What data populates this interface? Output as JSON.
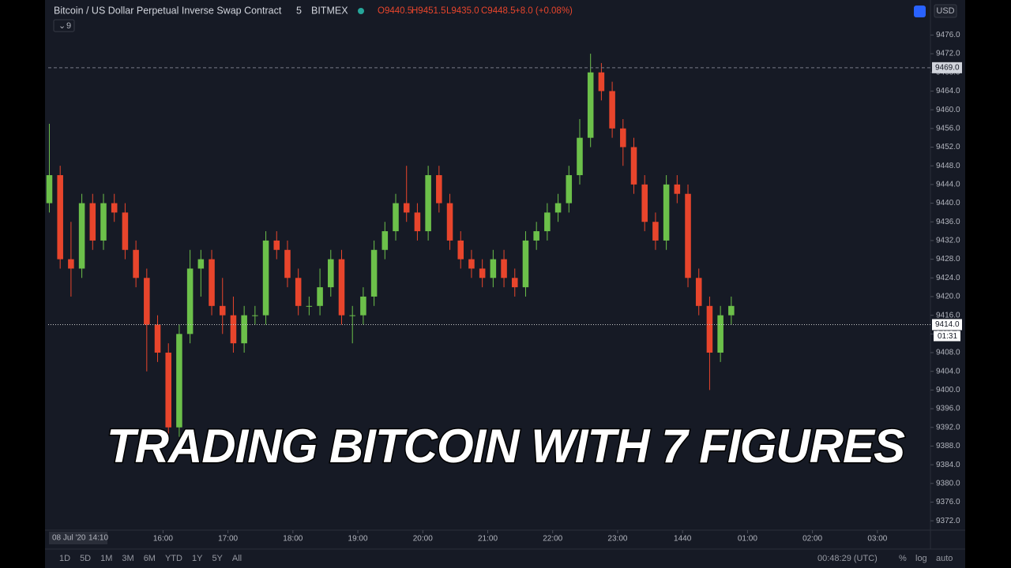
{
  "header": {
    "symbol": "Bitcoin / US Dollar Perpetual Inverse Swap Contract",
    "interval": "5",
    "exchange": "BITMEX",
    "ohlc_legend": [
      "O9440.5",
      "H9451.5",
      "L9435.0",
      "C9448.5",
      "+8.0 (+0.08%)"
    ],
    "indicator_count": "9",
    "currency": "USD"
  },
  "overlay_title": "TRADING BITCOIN WITH 7 FIGURES",
  "chart_data": {
    "type": "candlestick",
    "x": [
      855,
      865,
      875,
      885,
      895,
      905,
      915,
      925,
      935,
      945,
      955,
      965,
      975,
      985,
      995,
      1005,
      1015,
      1025,
      1035,
      1045,
      1055,
      1065,
      1075,
      1085,
      1095,
      1105,
      1115,
      1125,
      1135,
      1145,
      1155,
      1165,
      1175,
      1185,
      1195,
      1205,
      1215,
      1225,
      1235,
      1245,
      1255,
      1265,
      1275,
      1285,
      1295,
      1305,
      1315,
      1325,
      1335,
      1345,
      1355,
      1365,
      1375,
      1385,
      1395,
      1405,
      1415,
      1425,
      1435,
      1445,
      1455,
      1465,
      1475,
      1485
    ],
    "open": [
      9440,
      9446,
      9428,
      9426,
      9440,
      9432,
      9440,
      9438,
      9430,
      9424,
      9414,
      9408,
      9392,
      9412,
      9426,
      9428,
      9418,
      9416,
      9410,
      9416,
      9416,
      9432,
      9430,
      9424,
      9418,
      9418,
      9422,
      9428,
      9416,
      9416,
      9420,
      9430,
      9434,
      9440,
      9438,
      9434,
      9446,
      9440,
      9432,
      9428,
      9426,
      9424,
      9428,
      9424,
      9422,
      9432,
      9434,
      9438,
      9440,
      9446,
      9454,
      9468,
      9464,
      9456,
      9452,
      9444,
      9436,
      9432,
      9444,
      9442,
      9424,
      9418,
      9408,
      9416
    ],
    "high": [
      9457,
      9448,
      9436,
      9442,
      9442,
      9442,
      9442,
      9440,
      9432,
      9426,
      9416,
      9410,
      9414,
      9430,
      9430,
      9430,
      9424,
      9420,
      9418,
      9418,
      9434,
      9434,
      9432,
      9426,
      9420,
      9426,
      9430,
      9430,
      9418,
      9422,
      9432,
      9436,
      9442,
      9448,
      9440,
      9448,
      9448,
      9442,
      9434,
      9430,
      9428,
      9430,
      9430,
      9426,
      9434,
      9436,
      9440,
      9442,
      9448,
      9458,
      9472,
      9470,
      9466,
      9458,
      9454,
      9446,
      9438,
      9446,
      9446,
      9444,
      9426,
      9420,
      9418,
      9420
    ],
    "low": [
      9438,
      9426,
      9420,
      9424,
      9430,
      9430,
      9436,
      9428,
      9422,
      9404,
      9406,
      9390,
      9390,
      9410,
      9420,
      9416,
      9412,
      9408,
      9408,
      9414,
      9414,
      9428,
      9422,
      9416,
      9416,
      9416,
      9420,
      9414,
      9410,
      9414,
      9418,
      9428,
      9432,
      9436,
      9432,
      9432,
      9438,
      9430,
      9426,
      9424,
      9422,
      9422,
      9422,
      9420,
      9420,
      9430,
      9432,
      9436,
      9438,
      9444,
      9452,
      9462,
      9454,
      9448,
      9442,
      9434,
      9430,
      9430,
      9440,
      9422,
      9416,
      9400,
      9406,
      9414
    ],
    "close": [
      9446,
      9428,
      9426,
      9440,
      9432,
      9440,
      9438,
      9430,
      9424,
      9414,
      9408,
      9392,
      9412,
      9426,
      9428,
      9418,
      9416,
      9410,
      9416,
      9416,
      9432,
      9430,
      9424,
      9418,
      9418,
      9422,
      9428,
      9416,
      9416,
      9420,
      9430,
      9434,
      9440,
      9438,
      9434,
      9446,
      9440,
      9432,
      9428,
      9426,
      9424,
      9428,
      9424,
      9422,
      9432,
      9434,
      9438,
      9440,
      9446,
      9454,
      9468,
      9464,
      9456,
      9452,
      9444,
      9436,
      9432,
      9444,
      9442,
      9424,
      9418,
      9408,
      9416,
      9418
    ],
    "up_color": "#6cc04a",
    "down_color": "#e8452c",
    "xlim": [
      851,
      1669
    ],
    "ylim": [
      9370,
      9483.5
    ],
    "xticks": [
      {
        "value": 960,
        "label": "16:00"
      },
      {
        "value": 1020,
        "label": "17:00"
      },
      {
        "value": 1080,
        "label": "18:00"
      },
      {
        "value": 1140,
        "label": "19:00"
      },
      {
        "value": 1200,
        "label": "20:00"
      },
      {
        "value": 1260,
        "label": "21:00"
      },
      {
        "value": 1320,
        "label": "22:00"
      },
      {
        "value": 1380,
        "label": "23:00"
      },
      1440,
      {
        "value": 1500,
        "label": "01:00"
      },
      {
        "value": 1560,
        "label": "02:00"
      },
      {
        "value": 1620,
        "label": "03:00"
      }
    ],
    "yticks": [
      {
        "value": 9372,
        "label": "9372.0"
      },
      {
        "value": 9376,
        "label": "9376.0"
      },
      {
        "value": 9380,
        "label": "9380.0"
      },
      {
        "value": 9384,
        "label": "9384.0"
      },
      {
        "value": 9388,
        "label": "9388.0"
      },
      {
        "value": 9392,
        "label": "9392.0"
      },
      {
        "value": 9396,
        "label": "9396.0"
      },
      {
        "value": 9400,
        "label": "9400.0"
      },
      {
        "value": 9404,
        "label": "9404.0"
      },
      {
        "value": 9408,
        "label": "9408.0"
      },
      {
        "value": 9412,
        "label": "9412.0"
      },
      {
        "value": 9416,
        "label": "9416.0"
      },
      {
        "value": 9420,
        "label": "9420.0"
      },
      {
        "value": 9424,
        "label": "9424.0"
      },
      {
        "value": 9428,
        "label": "9428.0"
      },
      {
        "value": 9432,
        "label": "9432.0"
      },
      {
        "value": 9436,
        "label": "9436.0"
      },
      {
        "value": 9440,
        "label": "9440.0"
      },
      {
        "value": 9444,
        "label": "9444.0"
      },
      {
        "value": 9448,
        "label": "9448.0"
      },
      {
        "value": 9452,
        "label": "9452.0"
      },
      {
        "value": 9456,
        "label": "9456.0"
      },
      {
        "value": 9460,
        "label": "9460.0"
      },
      {
        "value": 9464,
        "label": "9464.0"
      },
      {
        "value": 9468,
        "label": "9468.0"
      },
      {
        "value": 9472,
        "label": "9472.0"
      },
      {
        "value": 9476,
        "label": "9476.0"
      }
    ],
    "price_markers": [
      {
        "value": 9469,
        "label": "9469.0"
      },
      {
        "value": 9414,
        "label": "9414.0"
      }
    ],
    "countdown": "01:31",
    "start_date_label": "08 Jul '20",
    "start_time_label": "14:10"
  },
  "toolbar": {
    "ranges": [
      "1D",
      "5D",
      "1M",
      "3M",
      "6M",
      "YTD",
      "1Y",
      "5Y",
      "All"
    ],
    "clock": "00:48:29 (UTC)",
    "percent": "%",
    "log": "log",
    "auto": "auto"
  }
}
